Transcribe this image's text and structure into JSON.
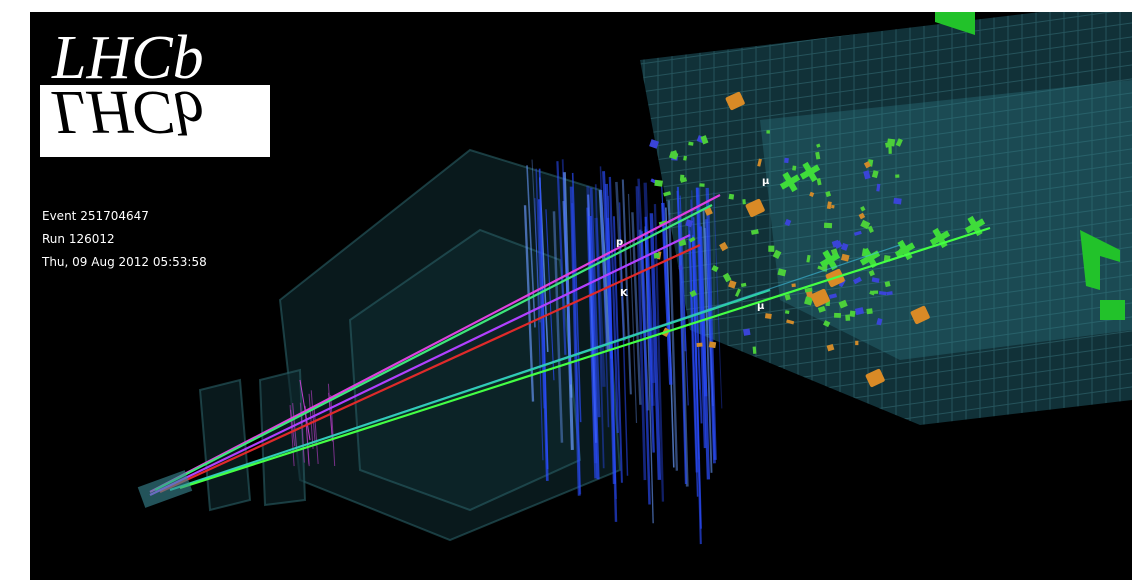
{
  "logo": {
    "text": "LHCb"
  },
  "event_info": {
    "event": "Event 251704647",
    "run": "Run 126012",
    "time": "Thu, 09 Aug 2012 05:53:58"
  },
  "track_labels": [
    "p",
    "K",
    "μ",
    "μ"
  ]
}
